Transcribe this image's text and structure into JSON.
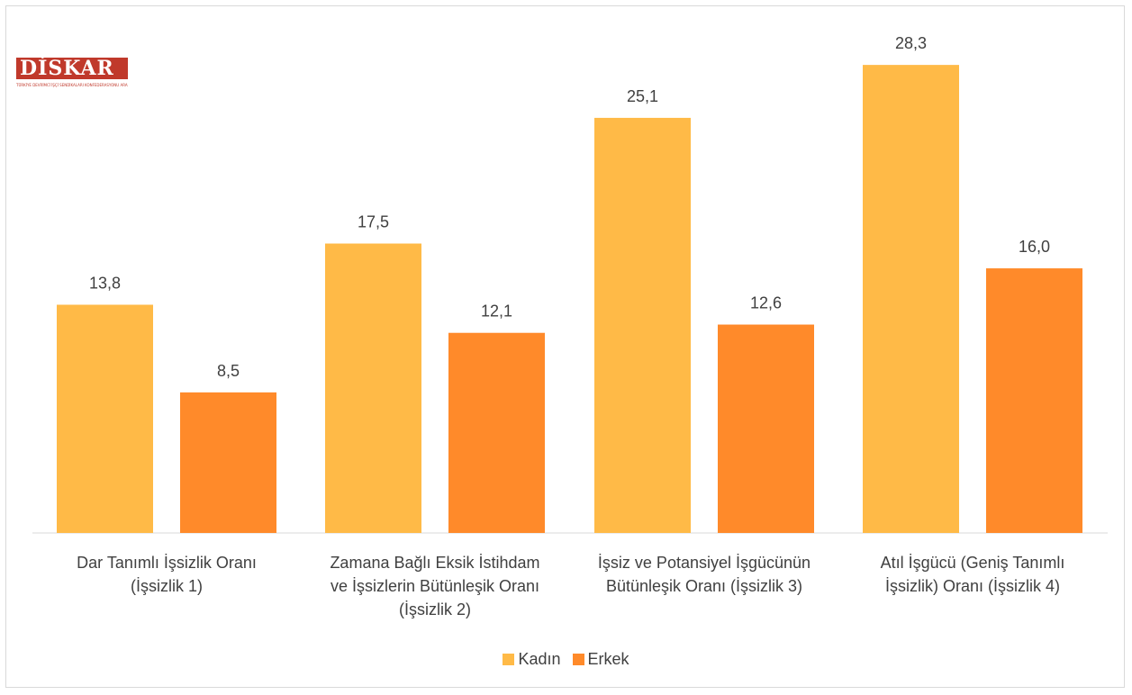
{
  "logo": {
    "main": "DİSKAR",
    "sub": "TÜRKİYE DEVRİMCİ İŞÇİ SENDİKALARI KONFEDERASYONU ARAŞTIRMA MERKEZİ"
  },
  "colors": {
    "kadin": "#FFBA47",
    "erkek": "#FF8A2A",
    "axis": "#d9d9d9",
    "text": "#404040"
  },
  "chart_data": {
    "type": "bar",
    "categories": [
      [
        "Dar Tanımlı İşsizlik Oranı",
        "(İşsizlik 1)"
      ],
      [
        "Zamana Bağlı Eksik İstihdam",
        "ve İşsizlerin Bütünleşik Oranı",
        "(İşsizlik 2)"
      ],
      [
        "İşsiz ve Potansiyel İşgücünün",
        "Bütünleşik Oranı (İşsizlik 3)"
      ],
      [
        "Atıl İşgücü (Geniş Tanımlı",
        "İşsizlik) Oranı (İşsizlik 4)"
      ]
    ],
    "series": [
      {
        "name": "Kadın",
        "values": [
          13.8,
          17.5,
          25.1,
          28.3
        ],
        "labels": [
          "13,8",
          "17,5",
          "25,1",
          "28,3"
        ]
      },
      {
        "name": "Erkek",
        "values": [
          8.5,
          12.1,
          12.6,
          16.0
        ],
        "labels": [
          "8,5",
          "12,1",
          "12,6",
          "16,0"
        ]
      }
    ],
    "ylim": [
      0,
      30
    ],
    "grid": false,
    "legend": "bottom"
  }
}
